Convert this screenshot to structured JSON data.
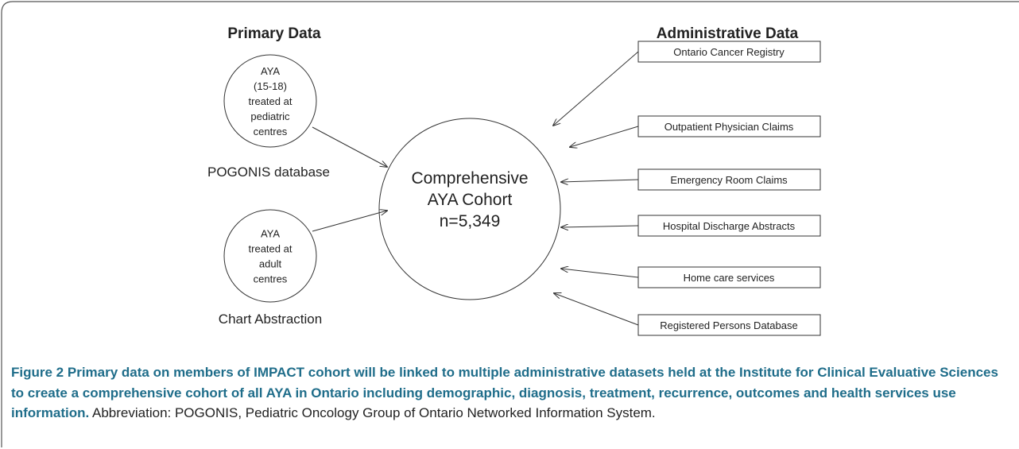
{
  "headers": {
    "left": "Primary Data",
    "right": "Administrative Data"
  },
  "sources": [
    {
      "lines": [
        "AYA",
        "(15-18)",
        "treated at",
        "pediatric",
        "centres"
      ],
      "label": "POGONIS database"
    },
    {
      "lines": [
        "AYA",
        "treated at",
        "adult",
        "centres"
      ],
      "label": "Chart Abstraction"
    }
  ],
  "center": {
    "lines": [
      "Comprehensive",
      "AYA Cohort",
      "n=5,349"
    ]
  },
  "datasets": [
    "Ontario Cancer Registry",
    "Outpatient Physician Claims",
    "Emergency Room Claims",
    "Hospital Discharge Abstracts",
    "Home care services",
    "Registered Persons Database"
  ],
  "caption": {
    "label": "Figure 2",
    "title": "Primary data on members of IMPACT cohort will be linked to multiple administrative datasets held at the Institute for Clinical Evaluative Sciences to create a comprehensive cohort of all AYA in Ontario including demographic, diagnosis, treatment, recurrence, outcomes and health services use information.",
    "text": "Abbreviation: POGONIS, Pediatric Oncology Group of Ontario Networked Information System."
  }
}
